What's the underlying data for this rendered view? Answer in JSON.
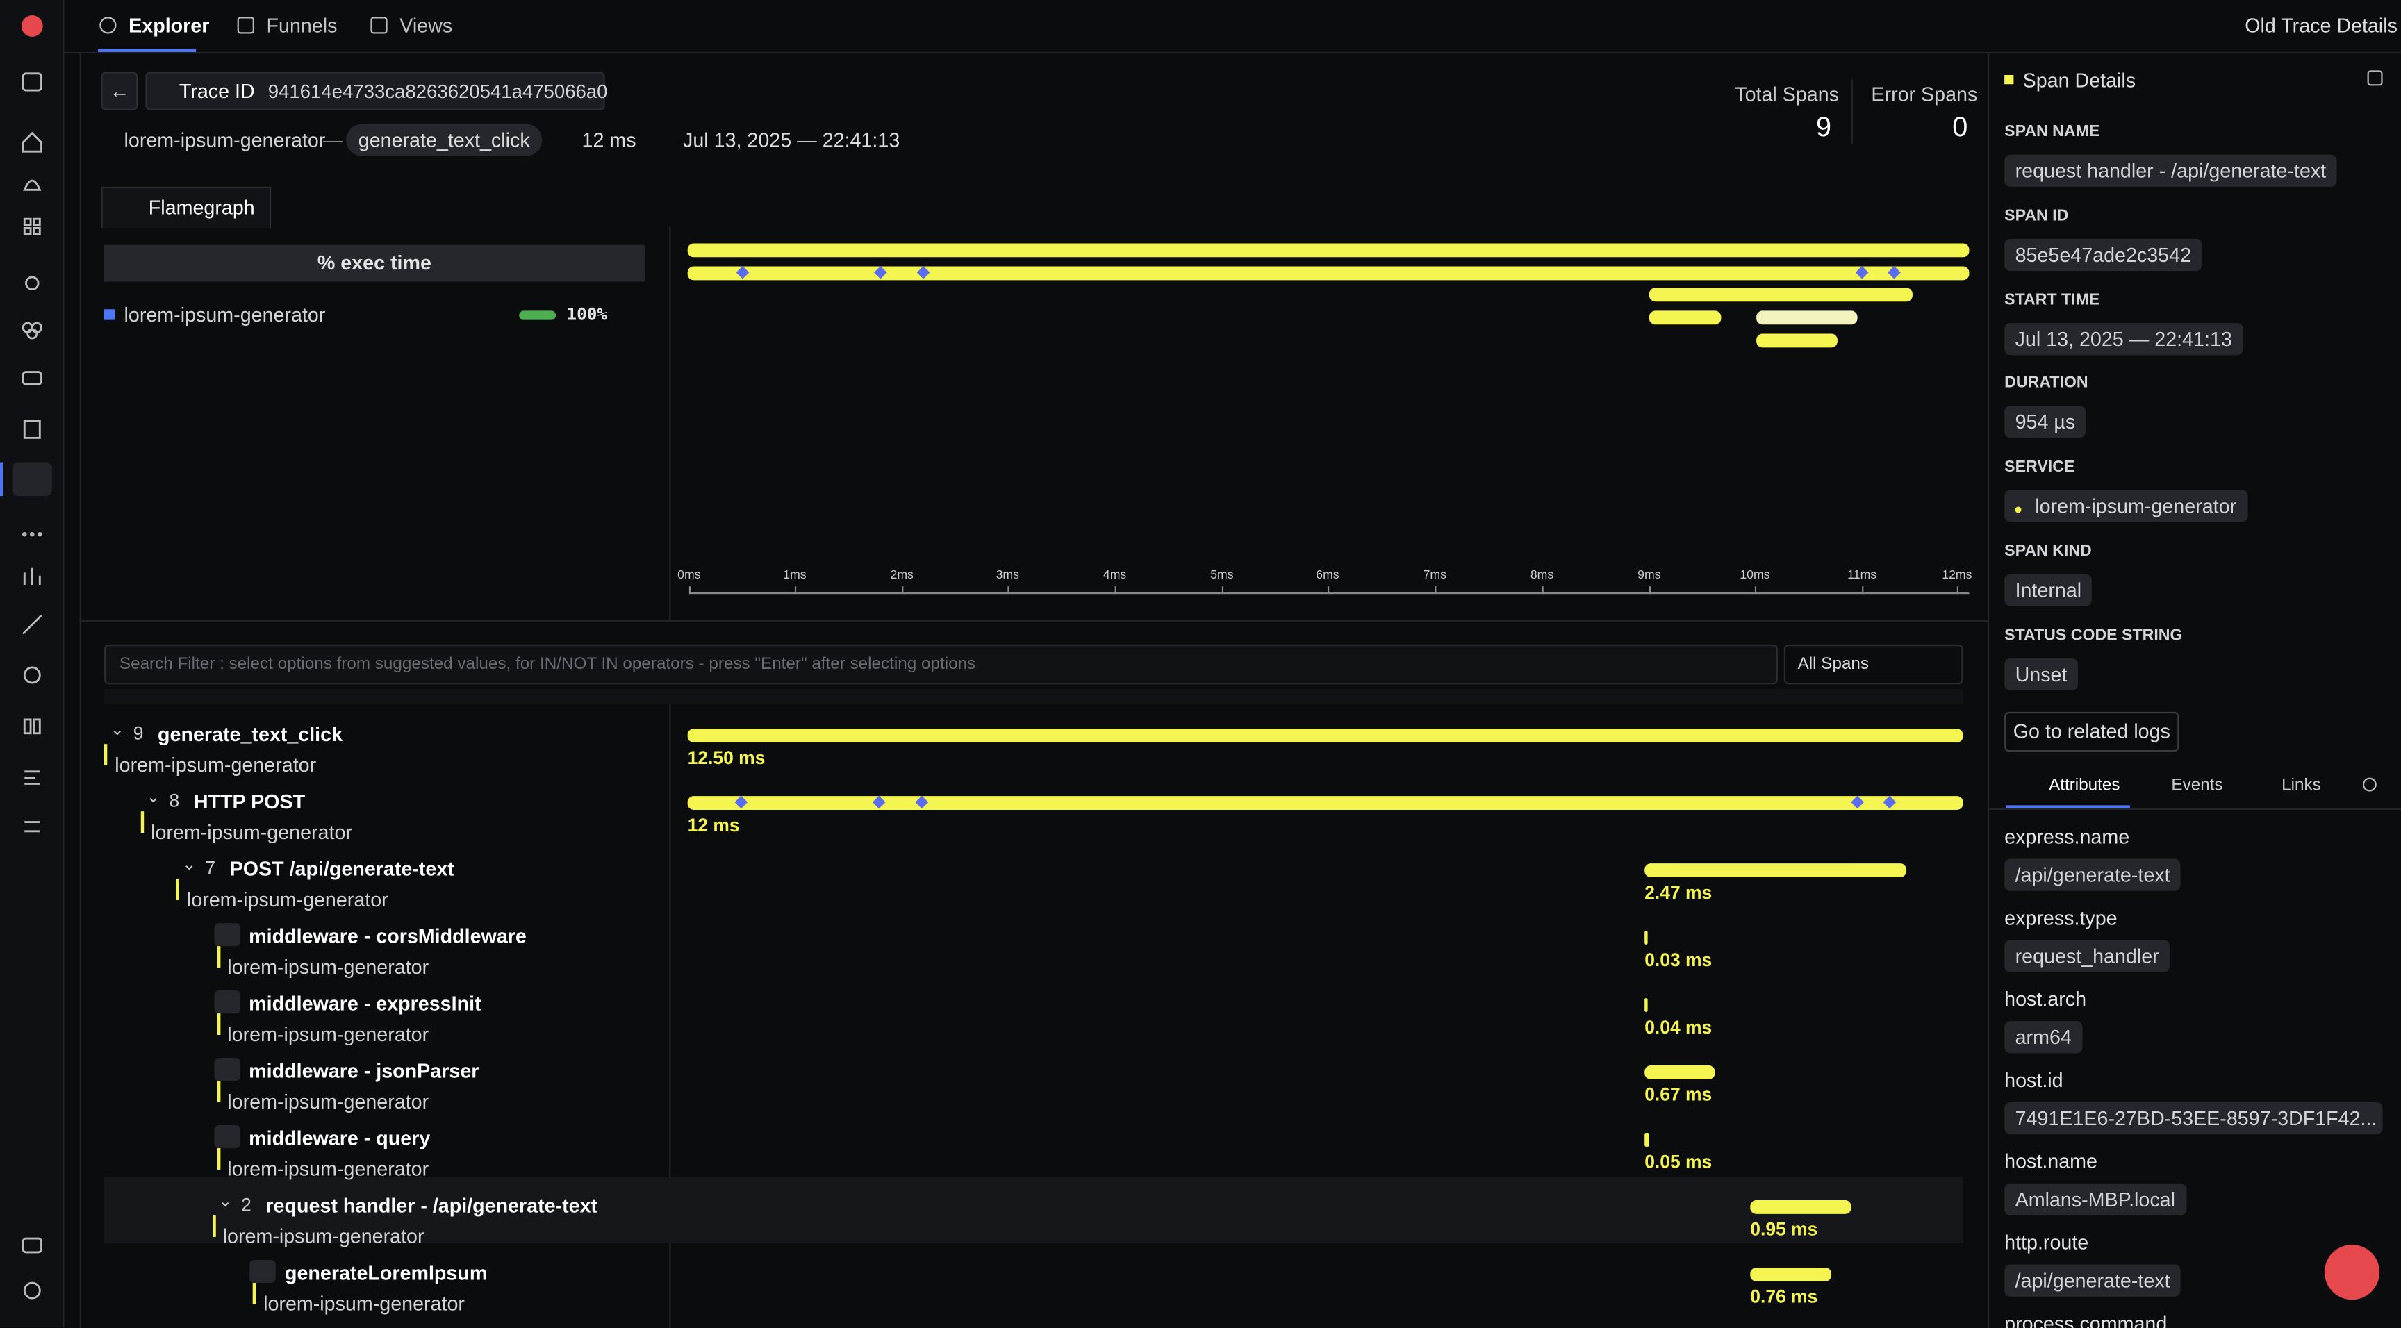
{
  "nav": {
    "tabs": [
      "Explorer",
      "Funnels",
      "Views"
    ],
    "old_trace": "Old Trace Details"
  },
  "trace": {
    "id_label": "Trace ID",
    "id": "941614e4733ca8263620541a475066a0",
    "service": "lorem-ipsum-generator",
    "separator": "—",
    "root_span": "generate_text_click",
    "duration": "12 ms",
    "date": "Jul 13, 2025 — 22:41:13",
    "total_label": "Total Spans",
    "total": 9,
    "error_label": "Error Spans",
    "errors": 0
  },
  "tab": "Flamegraph",
  "exec": {
    "header": "% exec time",
    "service": "lorem-ipsum-generator",
    "percent": "100%"
  },
  "axis_ticks": [
    "0ms",
    "1ms",
    "2ms",
    "3ms",
    "4ms",
    "5ms",
    "6ms",
    "7ms",
    "8ms",
    "9ms",
    "10ms",
    "11ms",
    "12ms"
  ],
  "search": {
    "placeholder": "Search Filter : select options from suggested values, for IN/NOT IN operators - press \"Enter\" after selecting options",
    "select": "All Spans"
  },
  "spans": [
    {
      "count": 9,
      "name": "generate_text_click",
      "service": "lorem-ipsum-generator",
      "duration": "12.50 ms"
    },
    {
      "count": 8,
      "name": "HTTP POST",
      "service": "lorem-ipsum-generator",
      "duration": "12 ms"
    },
    {
      "count": 7,
      "name": "POST /api/generate-text",
      "service": "lorem-ipsum-generator",
      "duration": "2.47 ms"
    },
    {
      "name": "middleware - corsMiddleware",
      "service": "lorem-ipsum-generator",
      "duration": "0.03 ms"
    },
    {
      "name": "middleware - expressInit",
      "service": "lorem-ipsum-generator",
      "duration": "0.04 ms"
    },
    {
      "name": "middleware - jsonParser",
      "service": "lorem-ipsum-generator",
      "duration": "0.67 ms"
    },
    {
      "name": "middleware - query",
      "service": "lorem-ipsum-generator",
      "duration": "0.05 ms"
    },
    {
      "count": 2,
      "name": "request handler - /api/generate-text",
      "service": "lorem-ipsum-generator",
      "duration": "0.95 ms"
    },
    {
      "name": "generateLoremIpsum",
      "service": "lorem-ipsum-generator",
      "duration": "0.76 ms"
    }
  ],
  "details": {
    "title": "Span Details",
    "fields": [
      {
        "label": "SPAN NAME",
        "value": "request handler - /api/generate-text"
      },
      {
        "label": "SPAN ID",
        "value": "85e5e47ade2c3542"
      },
      {
        "label": "START TIME",
        "value": "Jul 13, 2025 — 22:41:13"
      },
      {
        "label": "DURATION",
        "value": "954 µs"
      },
      {
        "label": "SERVICE",
        "value": "lorem-ipsum-generator"
      },
      {
        "label": "SPAN KIND",
        "value": "Internal"
      },
      {
        "label": "STATUS CODE STRING",
        "value": "Unset"
      }
    ],
    "logs_button": "Go to related logs",
    "tabs": [
      "Attributes",
      "Events",
      "Links"
    ],
    "attributes": [
      {
        "key": "express.name",
        "value": "/api/generate-text"
      },
      {
        "key": "express.type",
        "value": "request_handler"
      },
      {
        "key": "host.arch",
        "value": "arm64"
      },
      {
        "key": "host.id",
        "value": "7491E1E6-27BD-53EE-8597-3DF1F42..."
      },
      {
        "key": "host.name",
        "value": "Amlans-MBP.local"
      },
      {
        "key": "http.route",
        "value": "/api/generate-text"
      },
      {
        "key": "process.command",
        "value": ""
      }
    ]
  }
}
